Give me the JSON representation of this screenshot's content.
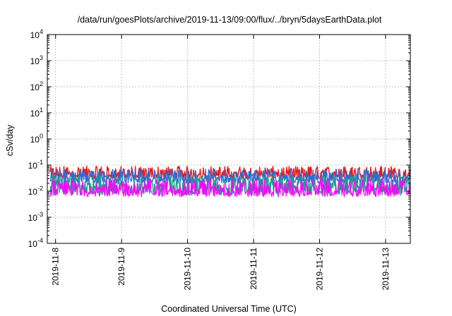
{
  "chart_data": {
    "type": "line",
    "title": "/data/run/goesPlots/archive/2019-11-13/09:00/flux/../bryn/5daysEarthData.plot",
    "xlabel": "Coordinated Universal Time (UTC)",
    "ylabel": "cSv/day",
    "yscale": "log",
    "ylim": [
      0.0001,
      10000
    ],
    "y_ticks": [
      {
        "base": "10",
        "exp": "-4"
      },
      {
        "base": "10",
        "exp": "-3"
      },
      {
        "base": "10",
        "exp": "-2"
      },
      {
        "base": "10",
        "exp": "-1"
      },
      {
        "base": "10",
        "exp": "0"
      },
      {
        "base": "10",
        "exp": "1"
      },
      {
        "base": "10",
        "exp": "2"
      },
      {
        "base": "10",
        "exp": "3"
      },
      {
        "base": "10",
        "exp": "4"
      }
    ],
    "x_range": [
      "2019-11-07T21:00",
      "2019-11-13T09:00"
    ],
    "x_ticks": [
      "2019-11-8",
      "2019-11-9",
      "2019-11-10",
      "2019-11-11",
      "2019-11-12",
      "2019-11-13"
    ],
    "grid": true,
    "series": [
      {
        "color": "#e8191c",
        "y_range": [
          0.03,
          0.09
        ]
      },
      {
        "color": "#2e6bd6",
        "y_range": [
          0.02,
          0.07
        ]
      },
      {
        "color": "#1aa08a",
        "y_range": [
          0.007,
          0.04
        ]
      },
      {
        "color": "#ff00ff",
        "y_range": [
          0.006,
          0.03
        ]
      }
    ]
  }
}
